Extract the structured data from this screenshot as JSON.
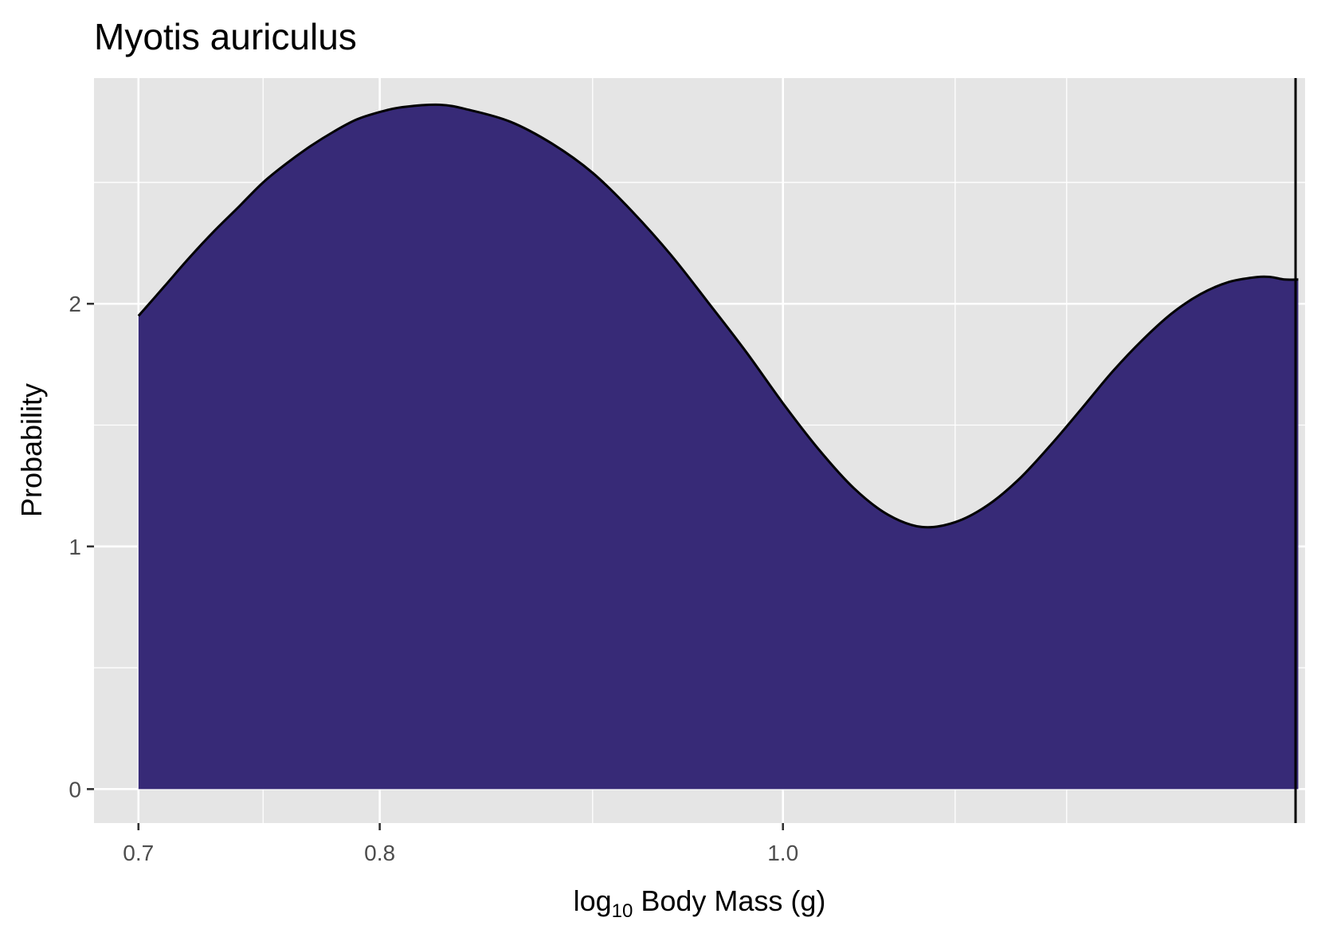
{
  "chart_data": {
    "type": "area",
    "title": "Myotis auriculus",
    "xlabel_main": "log",
    "xlabel_sub": "10",
    "xlabel_rest": " Body Mass (g)",
    "ylabel": "Probability",
    "x_scale": "log10",
    "xlim": [
      0.683,
      1.335
    ],
    "ylim": [
      -0.14,
      2.93
    ],
    "x_ticks": [
      {
        "value": 0.7,
        "label": "0.7"
      },
      {
        "value": 0.8,
        "label": "0.8"
      },
      {
        "value": 1.0,
        "label": "1.0"
      }
    ],
    "x_minor_ticks": [
      0.75,
      0.9,
      1.1,
      1.17
    ],
    "y_ticks": [
      {
        "value": 0,
        "label": "0"
      },
      {
        "value": 1,
        "label": "1"
      },
      {
        "value": 2,
        "label": "2"
      }
    ],
    "y_minor_ticks": [
      0.5,
      1.5,
      2.5
    ],
    "grid": true,
    "series": [
      {
        "x": [
          0.7,
          0.71,
          0.72,
          0.73,
          0.74,
          0.75,
          0.76,
          0.77,
          0.78,
          0.79,
          0.8,
          0.81,
          0.827,
          0.84,
          0.86,
          0.88,
          0.9,
          0.92,
          0.94,
          0.96,
          0.98,
          1.0,
          1.02,
          1.04,
          1.06,
          1.08,
          1.1,
          1.12,
          1.14,
          1.16,
          1.18,
          1.2,
          1.22,
          1.24,
          1.26,
          1.28,
          1.3,
          1.31,
          1.32,
          1.33
        ],
        "y": [
          1.95,
          2.07,
          2.19,
          2.3,
          2.4,
          2.5,
          2.58,
          2.65,
          2.71,
          2.76,
          2.79,
          2.81,
          2.82,
          2.8,
          2.75,
          2.66,
          2.54,
          2.38,
          2.2,
          2.0,
          1.8,
          1.59,
          1.4,
          1.24,
          1.13,
          1.08,
          1.1,
          1.17,
          1.28,
          1.42,
          1.57,
          1.72,
          1.85,
          1.96,
          2.04,
          2.09,
          2.11,
          2.11,
          2.1,
          2.1
        ],
        "fill": "#372a77",
        "line": "#000000"
      }
    ],
    "vline_x": 1.328,
    "vline_color": "#000000",
    "panel_bg": "#e5e5e5",
    "grid_color": "#ffffff"
  }
}
